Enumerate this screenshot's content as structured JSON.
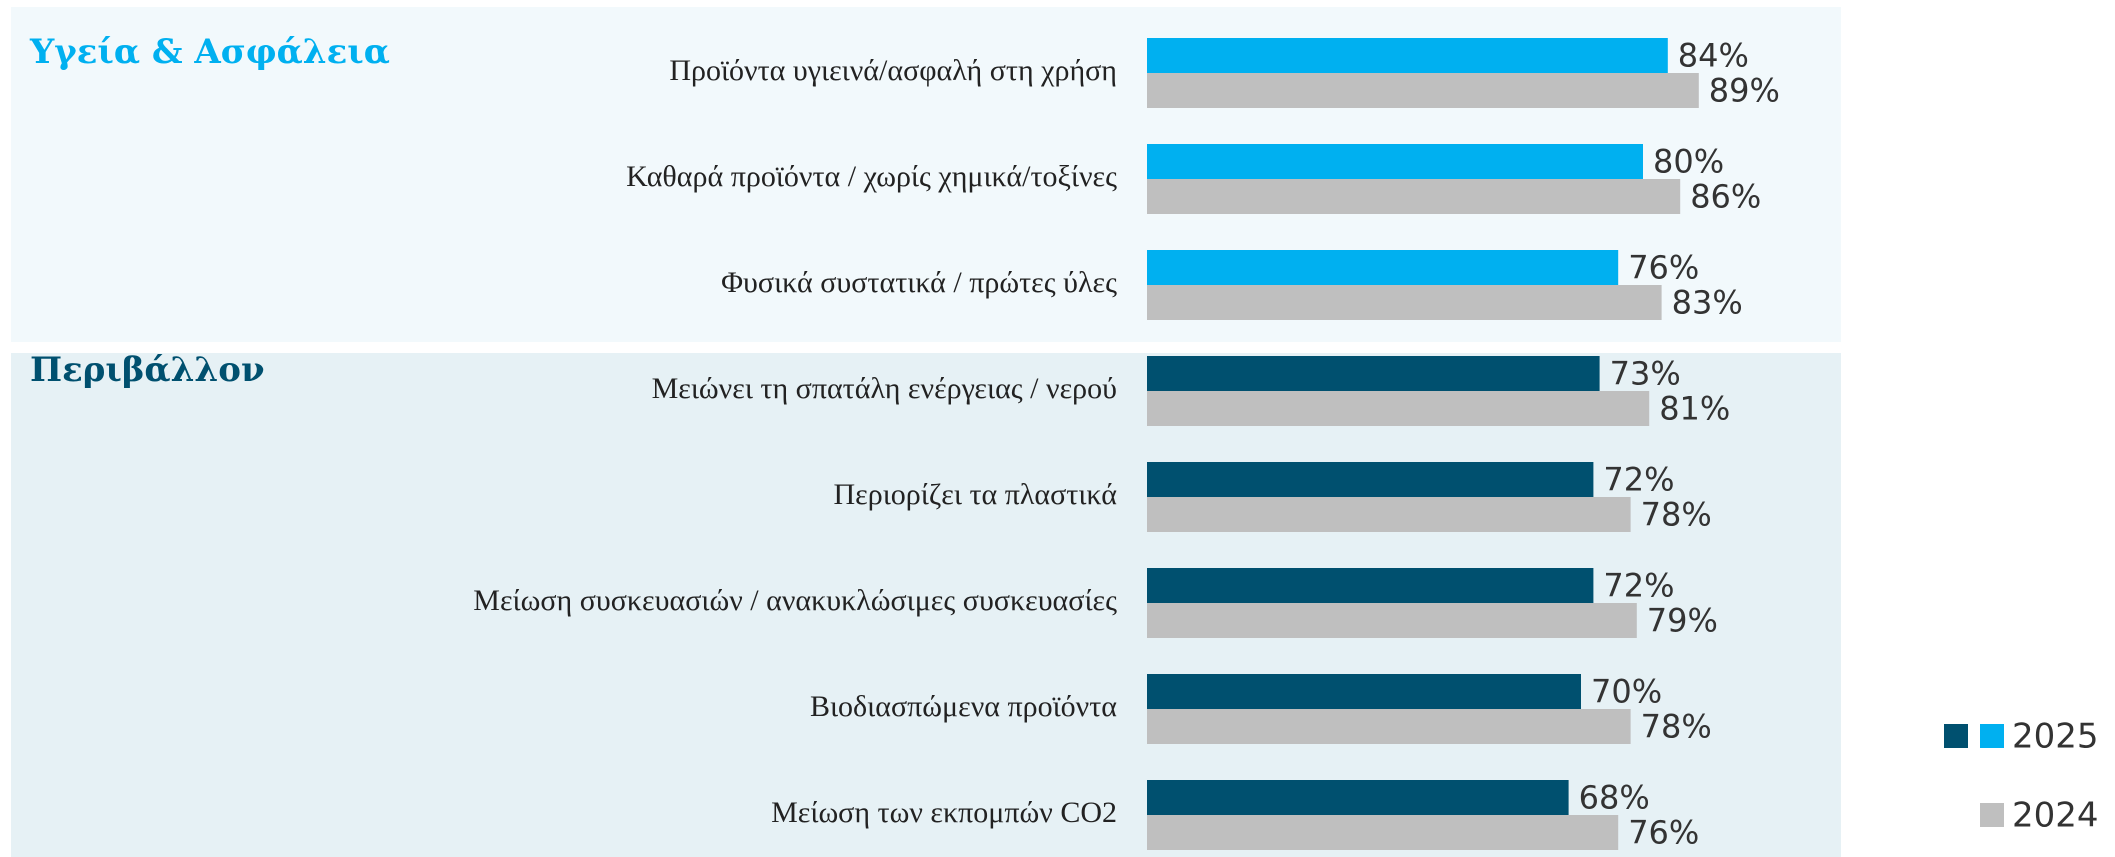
{
  "chart_data": [
    {
      "type": "bar",
      "orientation": "horizontal",
      "title": "Υγεία & Ασφάλεια",
      "background": "#f2f9fc",
      "xlim": [
        0,
        100
      ],
      "categories": [
        "Προϊόντα υγιεινά/ασφαλή στη χρήση",
        "Καθαρά προϊόντα / χωρίς χημικά/τοξίνες",
        "Φυσικά συστατικά / πρώτες ύλες"
      ],
      "series": [
        {
          "name": "2025",
          "color": "#00b0f0",
          "values": [
            84,
            80,
            76
          ],
          "value_labels": [
            "84%",
            "80%",
            "76%"
          ]
        },
        {
          "name": "2024",
          "color": "#bfbfbf",
          "values": [
            89,
            86,
            83
          ],
          "value_labels": [
            "89%",
            "86%",
            "83%"
          ]
        }
      ]
    },
    {
      "type": "bar",
      "orientation": "horizontal",
      "title": "Περιβάλλον",
      "background": "#e6f1f5",
      "xlim": [
        0,
        100
      ],
      "categories": [
        "Μειώνει τη σπατάλη ενέργειας / νερού",
        "Περιορίζει τα πλαστικά",
        "Μείωση συσκευασιών / ανακυκλώσιμες συσκευασίες",
        "Βιοδιασπώμενα προϊόντα",
        "Μείωση των εκπομπών CO2"
      ],
      "series": [
        {
          "name": "2025",
          "color": "#00506f",
          "values": [
            73,
            72,
            72,
            70,
            68
          ],
          "value_labels": [
            "73%",
            "72%",
            "72%",
            "70%",
            "68%"
          ]
        },
        {
          "name": "2024",
          "color": "#bfbfbf",
          "values": [
            81,
            78,
            79,
            78,
            76
          ],
          "value_labels": [
            "81%",
            "78%",
            "79%",
            "78%",
            "76%"
          ]
        }
      ]
    }
  ]
}
